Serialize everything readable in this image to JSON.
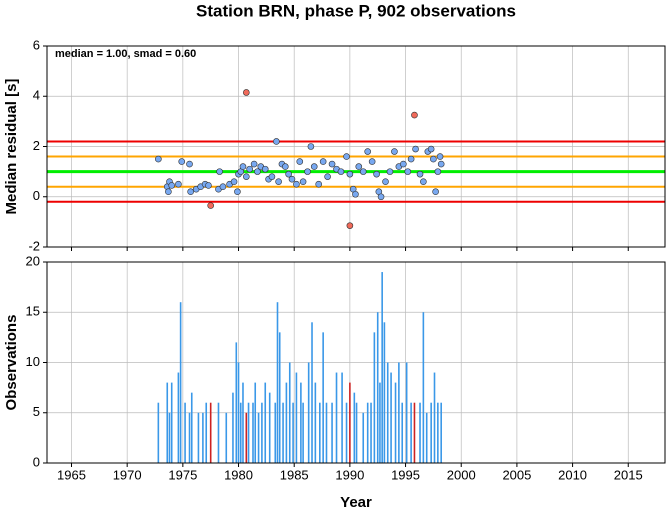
{
  "chart_data": [
    {
      "type": "scatter",
      "title": "Station BRN, phase P, 902 observations",
      "ylabel": "Median residual [s]",
      "annotation": "median = 1.00, smad = 0.60",
      "xlim": [
        1962.8,
        2018.3
      ],
      "xticks": [
        1965,
        1970,
        1975,
        1980,
        1985,
        1990,
        1995,
        2000,
        2005,
        2010,
        2015
      ],
      "ylim": [
        -2,
        6
      ],
      "yticks": [
        -2,
        0,
        2,
        4,
        6
      ],
      "grid": true,
      "reference_lines": [
        {
          "value": 1.0,
          "color": "#00ee00"
        },
        {
          "value": 0.4,
          "color": "#ffa500"
        },
        {
          "value": 1.6,
          "color": "#ffa500"
        },
        {
          "value": -0.2,
          "color": "#ee0000"
        },
        {
          "value": 2.2,
          "color": "#ee0000"
        }
      ],
      "series": [
        {
          "color": "#78a8f0",
          "x": [
            1972.8,
            1973.6,
            1973.7,
            1973.8,
            1974.0,
            1974.6,
            1974.9,
            1975.6,
            1975.7,
            1976.2,
            1976.6,
            1977.0,
            1977.3,
            1978.2,
            1978.3,
            1978.6,
            1979.2,
            1979.6,
            1979.9,
            1980.0,
            1980.2,
            1980.4,
            1980.7,
            1981.0,
            1981.4,
            1981.7,
            1982.0,
            1982.4,
            1982.7,
            1983.0,
            1983.4,
            1983.6,
            1983.9,
            1984.2,
            1984.5,
            1984.8,
            1985.2,
            1985.5,
            1985.8,
            1986.2,
            1986.5,
            1986.8,
            1987.2,
            1987.6,
            1988.0,
            1988.4,
            1988.8,
            1989.2,
            1989.7,
            1990.0,
            1990.3,
            1990.5,
            1990.8,
            1991.2,
            1991.6,
            1992.0,
            1992.4,
            1992.6,
            1992.8,
            1993.2,
            1993.6,
            1994.0,
            1994.4,
            1994.8,
            1995.2,
            1995.5,
            1995.9,
            1996.3,
            1996.6,
            1997.0,
            1997.3,
            1997.5,
            1997.7,
            1997.9,
            1998.1,
            1998.2
          ],
          "values": [
            1.5,
            0.4,
            0.2,
            0.6,
            0.45,
            0.5,
            1.4,
            1.3,
            0.2,
            0.3,
            0.4,
            0.5,
            0.45,
            0.3,
            1.0,
            0.4,
            0.5,
            0.6,
            0.2,
            0.9,
            1.0,
            1.2,
            0.8,
            1.1,
            1.3,
            1.0,
            1.2,
            1.1,
            0.7,
            0.8,
            2.2,
            0.6,
            1.3,
            1.2,
            0.9,
            0.7,
            0.5,
            1.4,
            0.6,
            1.0,
            2.0,
            1.2,
            0.5,
            1.4,
            0.8,
            1.3,
            1.1,
            1.0,
            1.6,
            0.9,
            0.3,
            0.1,
            1.2,
            1.0,
            1.8,
            1.4,
            0.9,
            0.2,
            0.0,
            0.6,
            1.0,
            1.8,
            1.2,
            1.3,
            1.0,
            1.5,
            1.9,
            0.9,
            0.6,
            1.8,
            1.9,
            1.5,
            0.2,
            1.0,
            1.6,
            1.3
          ]
        },
        {
          "color": "#f06a5a",
          "x": [
            1977.5,
            1980.7,
            1990.0,
            1995.8
          ],
          "values": [
            -0.35,
            4.15,
            -1.15,
            3.25
          ]
        }
      ]
    },
    {
      "type": "bar",
      "ylabel": "Observations",
      "xlabel": "Year",
      "xlim": [
        1962.8,
        2018.3
      ],
      "xticks": [
        1965,
        1970,
        1975,
        1980,
        1985,
        1990,
        1995,
        2000,
        2005,
        2010,
        2015
      ],
      "ylim": [
        0,
        20
      ],
      "yticks": [
        0,
        5,
        10,
        15,
        20
      ],
      "grid": true,
      "series": [
        {
          "color": "#3a98e8",
          "x": [
            1972.8,
            1973.6,
            1973.8,
            1974.0,
            1974.6,
            1974.8,
            1975.2,
            1975.6,
            1975.8,
            1976.4,
            1976.8,
            1977.1,
            1978.2,
            1978.9,
            1979.5,
            1979.8,
            1980.0,
            1980.2,
            1980.4,
            1980.9,
            1981.3,
            1981.5,
            1981.8,
            1982.1,
            1982.4,
            1982.8,
            1983.3,
            1983.5,
            1983.7,
            1984.0,
            1984.3,
            1984.6,
            1984.9,
            1985.2,
            1985.6,
            1985.8,
            1986.3,
            1986.6,
            1986.9,
            1987.3,
            1987.6,
            1987.9,
            1988.4,
            1988.8,
            1989.3,
            1989.7,
            1990.4,
            1990.6,
            1991.2,
            1991.6,
            1991.9,
            1992.2,
            1992.5,
            1992.7,
            1992.9,
            1993.1,
            1993.4,
            1993.7,
            1994.1,
            1994.4,
            1994.7,
            1995.1,
            1995.5,
            1996.3,
            1996.6,
            1996.9,
            1997.3,
            1997.6,
            1997.9,
            1998.2
          ],
          "values": [
            6,
            8,
            5,
            8,
            9,
            16,
            6,
            5,
            7,
            5,
            5,
            6,
            6,
            5,
            7,
            12,
            10,
            6,
            8,
            6,
            6,
            8,
            5,
            6,
            8,
            7,
            6,
            16,
            13,
            6,
            8,
            10,
            6,
            9,
            8,
            6,
            10,
            14,
            8,
            6,
            13,
            6,
            6,
            9,
            9,
            6,
            7,
            6,
            5,
            6,
            6,
            13,
            15,
            8,
            19,
            14,
            10,
            9,
            8,
            10,
            6,
            10,
            6,
            6,
            15,
            5,
            6,
            9,
            6,
            6
          ]
        },
        {
          "color": "#cc2222",
          "x": [
            1977.5,
            1980.7,
            1990.0,
            1995.8
          ],
          "values": [
            6,
            5,
            8,
            6
          ]
        }
      ]
    }
  ]
}
